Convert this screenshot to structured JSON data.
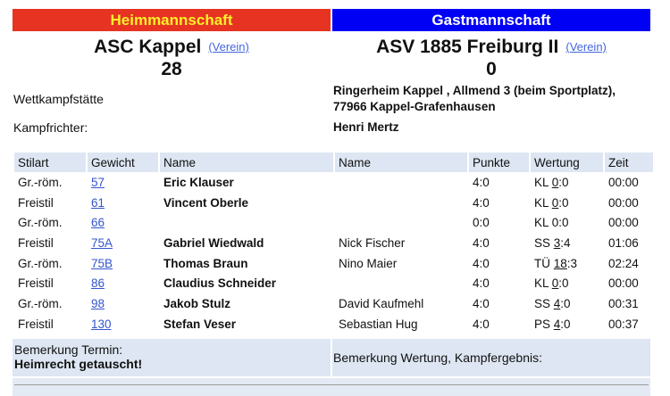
{
  "home": {
    "header": "Heimmannschaft",
    "team": "ASC Kappel",
    "link": "(Verein)",
    "score": "28"
  },
  "guest": {
    "header": "Gastmannschaft",
    "team": "ASV 1885 Freiburg II",
    "link": "(Verein)",
    "score": "0"
  },
  "venue": {
    "label": "Wettkampfstätte",
    "line1": "Ringerheim Kappel , Allmend 3 (beim Sportplatz),",
    "line2": "77966 Kappel-Grafenhausen"
  },
  "referee": {
    "label": "Kampfrichter:",
    "value": "Henri Mertz"
  },
  "columns": [
    "Stilart",
    "Gewicht",
    "Name",
    "Name",
    "Punkte",
    "Wertung",
    "Zeit"
  ],
  "rows": [
    {
      "style": "Gr.-röm.",
      "weight": "57",
      "home": "Eric Klauser",
      "guest": "",
      "points": "4:0",
      "w_pre": "KL ",
      "w_u": "0",
      "w_post": ":0",
      "time": "00:00"
    },
    {
      "style": "Freistil",
      "weight": "61",
      "home": "Vincent Oberle",
      "guest": "",
      "points": "4:0",
      "w_pre": "KL ",
      "w_u": "0",
      "w_post": ":0",
      "time": "00:00"
    },
    {
      "style": "Gr.-röm.",
      "weight": "66",
      "home": "",
      "guest": "",
      "points": "0:0",
      "w_pre": "KL 0:0",
      "w_u": "",
      "w_post": "",
      "time": "00:00"
    },
    {
      "style": "Freistil",
      "weight": "75A",
      "home": "Gabriel Wiedwald",
      "guest": "Nick Fischer",
      "points": "4:0",
      "w_pre": "SS ",
      "w_u": "3",
      "w_post": ":4",
      "time": "01:06"
    },
    {
      "style": "Gr.-röm.",
      "weight": "75B",
      "home": "Thomas Braun",
      "guest": "Nino Maier",
      "points": "4:0",
      "w_pre": "TÜ ",
      "w_u": "18",
      "w_post": ":3",
      "time": "02:24"
    },
    {
      "style": "Freistil",
      "weight": "86",
      "home": "Claudius Schneider",
      "guest": "",
      "points": "4:0",
      "w_pre": "KL ",
      "w_u": "0",
      "w_post": ":0",
      "time": "00:00"
    },
    {
      "style": "Gr.-röm.",
      "weight": "98",
      "home": "Jakob Stulz",
      "guest": "David Kaufmehl",
      "points": "4:0",
      "w_pre": "SS ",
      "w_u": "4",
      "w_post": ":0",
      "time": "00:31"
    },
    {
      "style": "Freistil",
      "weight": "130",
      "home": "Stefan Veser",
      "guest": "Sebastian Hug",
      "points": "4:0",
      "w_pre": "PS ",
      "w_u": "4",
      "w_post": ":0",
      "time": "00:37"
    }
  ],
  "remarks": {
    "termin_label": "Bemerkung Termin:",
    "termin_value": "Heimrecht getauscht!",
    "wertung_label": "Bemerkung Wertung, Kampfergebnis:"
  },
  "colors": {
    "home": "#e63322",
    "home_text": "#fff02a",
    "guest": "#0000f5",
    "table_header": "#dde6f2",
    "link": "#3355cc"
  }
}
